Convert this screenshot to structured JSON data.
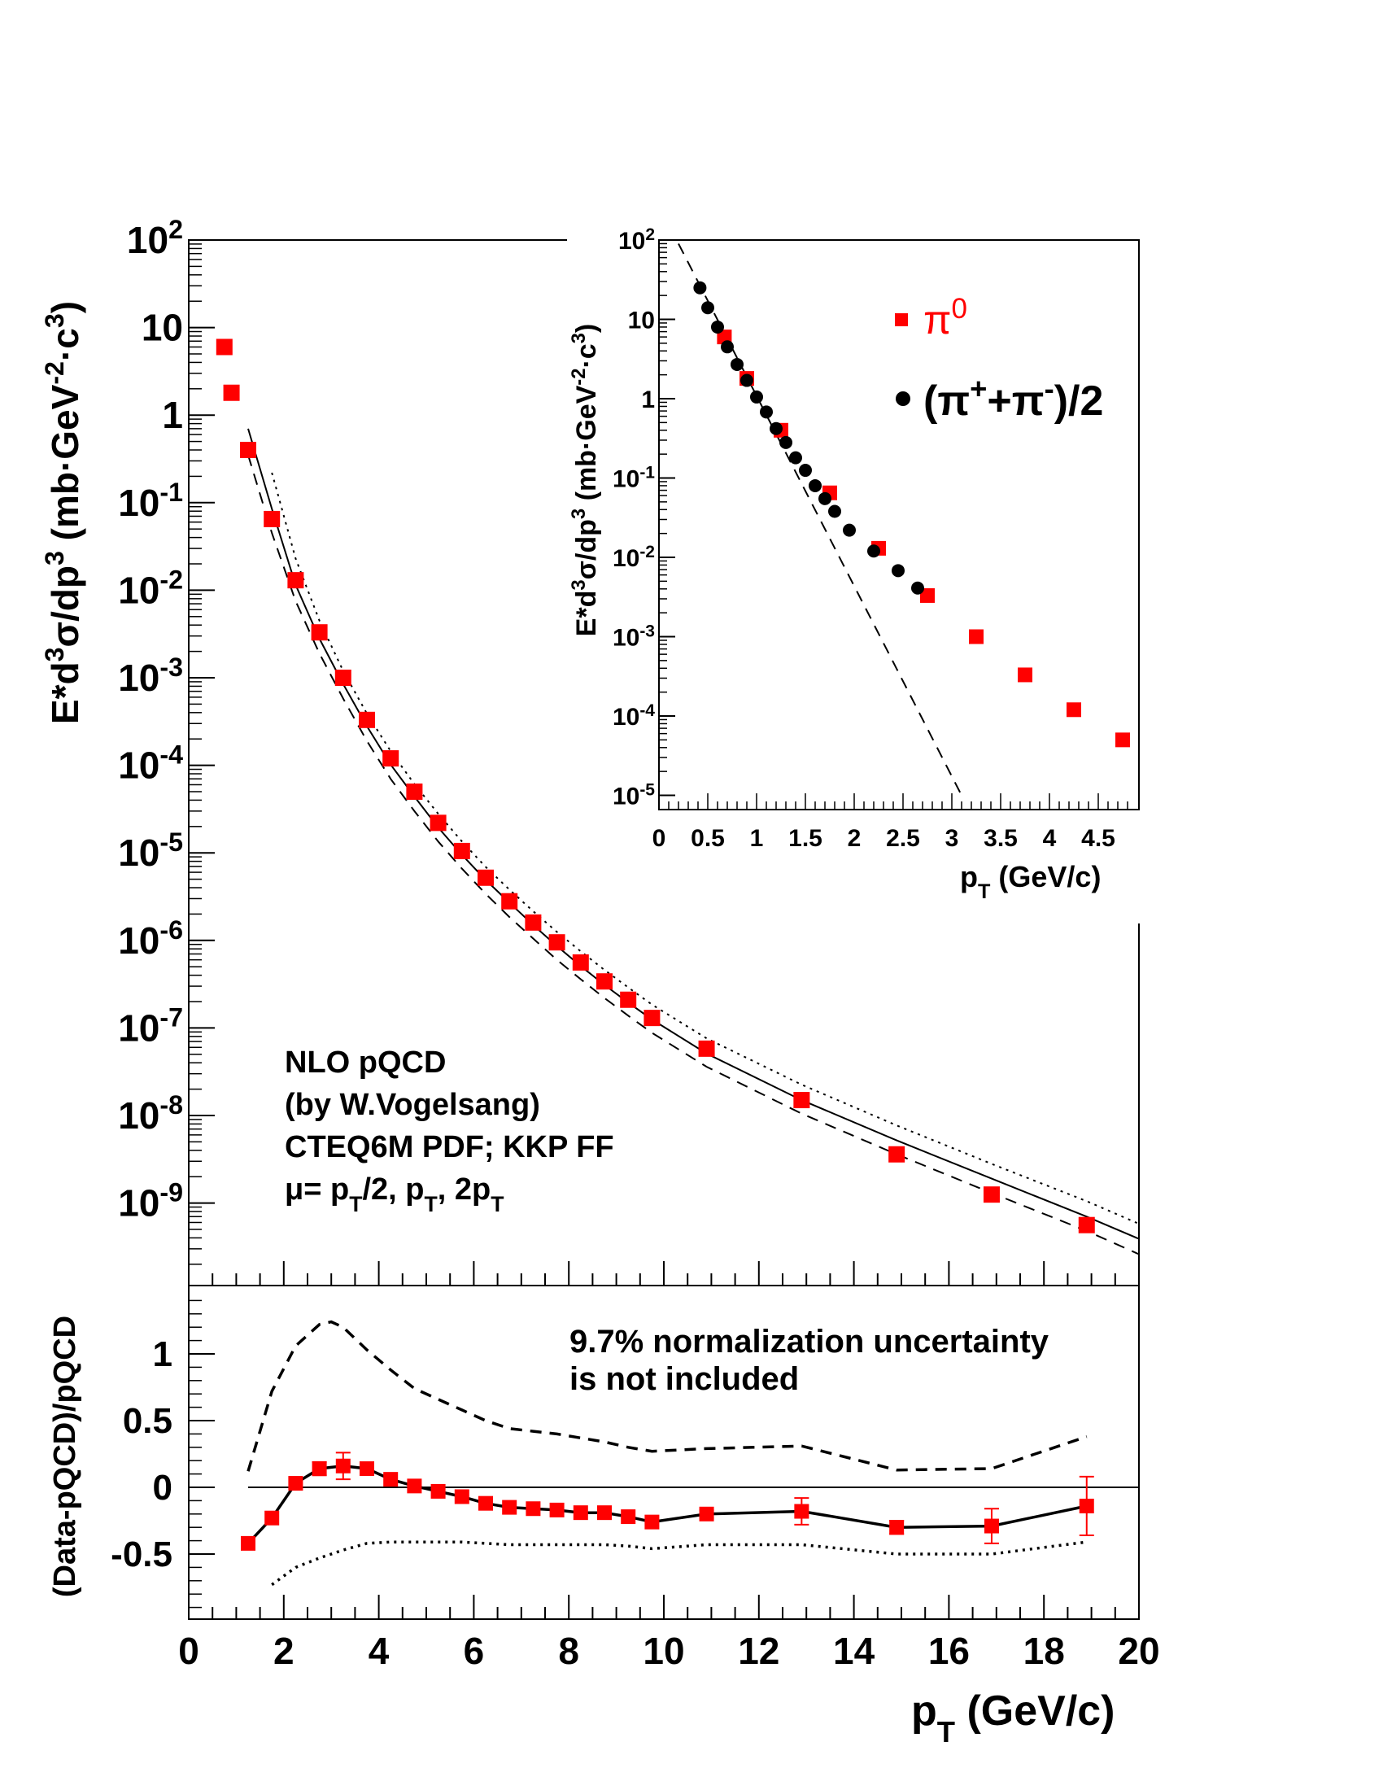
{
  "colors": {
    "pi0": "#ff0000",
    "charged": "#000000",
    "axis": "#000000",
    "background": "#ffffff"
  },
  "main": {
    "x_tick_labels": [
      "0",
      "2",
      "4",
      "6",
      "8",
      "10",
      "12",
      "14",
      "16",
      "18",
      "20"
    ],
    "y_tick_labels": [
      {
        "base": "10",
        "exp": "2",
        "e": 2
      },
      {
        "base": "10",
        "exp": "",
        "e": 1
      },
      {
        "base": "1",
        "exp": "",
        "e": 0
      },
      {
        "base": "10",
        "exp": "-1",
        "e": -1
      },
      {
        "base": "10",
        "exp": "-2",
        "e": -2
      },
      {
        "base": "10",
        "exp": "-3",
        "e": -3
      },
      {
        "base": "10",
        "exp": "-4",
        "e": -4
      },
      {
        "base": "10",
        "exp": "-5",
        "e": -5
      },
      {
        "base": "10",
        "exp": "-6",
        "e": -6
      },
      {
        "base": "10",
        "exp": "-7",
        "e": -7
      },
      {
        "base": "10",
        "exp": "-8",
        "e": -8
      },
      {
        "base": "10",
        "exp": "-9",
        "e": -9
      }
    ],
    "ylabel": "E*d³σ/dp³ (mb·GeV⁻²·c³)",
    "annotation_lines": [
      "NLO pQCD",
      "(by W.Vogelsang)",
      "CTEQ6M PDF; KKP FF",
      "μ= pT/2, pT, 2pT"
    ]
  },
  "ratio": {
    "y_tick_labels": [
      "1",
      "0.5",
      "0",
      "-0.5"
    ],
    "ylabel": "(Data-pQCD)/pQCD",
    "note_lines": [
      "9.7% normalization uncertainty",
      "is not included"
    ]
  },
  "xlabel": "pT (GeV/c)",
  "inset": {
    "x_tick_labels": [
      "0",
      "0.5",
      "1",
      "1.5",
      "2",
      "2.5",
      "3",
      "3.5",
      "4",
      "4.5"
    ],
    "y_tick_labels": [
      {
        "base": "10",
        "exp": "2",
        "e": 2
      },
      {
        "base": "10",
        "exp": "",
        "e": 1
      },
      {
        "base": "1",
        "exp": "",
        "e": 0
      },
      {
        "base": "10",
        "exp": "-1",
        "e": -1
      },
      {
        "base": "10",
        "exp": "-2",
        "e": -2
      },
      {
        "base": "10",
        "exp": "-3",
        "e": -3
      },
      {
        "base": "10",
        "exp": "-4",
        "e": -4
      },
      {
        "base": "10",
        "exp": "-5",
        "e": -5
      }
    ],
    "ylabel": "E*d³σ/dp³ (mb·GeV⁻²·c³)",
    "xlabel": "pT (GeV/c)",
    "legend": {
      "pi0_label": "π0",
      "charged_label": "(π⁺+π⁻)/2"
    }
  },
  "chart_data": [
    {
      "type": "scatter",
      "panel": "main",
      "xlabel": "pT (GeV/c)",
      "ylabel": "E*d³σ/dp³ (mb·GeV⁻²·c³)",
      "xlim": [
        0,
        20
      ],
      "ylim": [
        1e-10,
        100
      ],
      "log_y": true,
      "series": [
        {
          "name": "π0",
          "marker": "square",
          "color": "#ff0000",
          "x": [
            0.75,
            0.9,
            1.25,
            1.75,
            2.25,
            2.75,
            3.25,
            3.75,
            4.25,
            4.75,
            5.25,
            5.75,
            6.25,
            6.75,
            7.25,
            7.75,
            8.25,
            8.75,
            9.25,
            9.75,
            10.9,
            12.9,
            14.9,
            16.9,
            18.9
          ],
          "y": [
            6.0,
            1.8,
            0.4,
            0.065,
            0.013,
            0.0033,
            0.001,
            0.00033,
            0.00012,
            5e-05,
            2.2e-05,
            1.05e-05,
            5.2e-06,
            2.8e-06,
            1.6e-06,
            9.5e-07,
            5.6e-07,
            3.4e-07,
            2.1e-07,
            1.3e-07,
            5.8e-08,
            1.5e-08,
            3.6e-09,
            1.25e-09,
            5.6e-10
          ]
        },
        {
          "curve": "solid",
          "x": [
            1.25,
            1.75,
            2.25,
            2.75,
            3.25,
            3.75,
            4.25,
            4.75,
            5.25,
            5.75,
            6.25,
            6.75,
            7.25,
            7.75,
            8.25,
            8.75,
            9.25,
            9.75,
            10.9,
            12.9,
            14.9,
            16.9,
            18.9,
            20.0
          ],
          "y": [
            0.7,
            0.085,
            0.0115,
            0.0028,
            0.00085,
            0.00028,
            0.000102,
            4.4e-05,
            1.95e-05,
            9.5e-06,
            4.9e-06,
            2.7e-06,
            1.5e-06,
            8.6e-07,
            5.1e-07,
            3.1e-07,
            1.95e-07,
            1.25e-07,
            5.1e-08,
            1.5e-08,
            5.2e-09,
            1.9e-09,
            7e-10,
            3.9e-10
          ]
        },
        {
          "curve": "dashed",
          "x": [
            1.25,
            1.75,
            2.25,
            2.75,
            3.25,
            3.75,
            4.25,
            4.75,
            5.25,
            5.75,
            6.25,
            6.75,
            7.25,
            7.75,
            8.25,
            8.75,
            9.25,
            9.75,
            10.9,
            12.9,
            14.9,
            16.9,
            18.9,
            20.0
          ],
          "y": [
            0.35,
            0.045,
            0.0075,
            0.0019,
            0.00058,
            0.00019,
            7e-05,
            3e-05,
            1.35e-05,
            6.6e-06,
            3.4e-06,
            1.85e-06,
            1.05e-06,
            6e-07,
            3.6e-07,
            2.2e-07,
            1.38e-07,
            8.8e-08,
            3.6e-08,
            1.05e-08,
            3.6e-09,
            1.3e-09,
            4.8e-10,
            2.6e-10
          ]
        },
        {
          "curve": "dotted",
          "x": [
            1.75,
            2.25,
            2.75,
            3.25,
            3.75,
            4.25,
            4.75,
            5.25,
            5.75,
            6.25,
            6.75,
            7.25,
            7.75,
            8.25,
            8.75,
            9.25,
            9.75,
            10.9,
            12.9,
            14.9,
            16.9,
            18.9,
            20.0
          ],
          "y": [
            0.22,
            0.023,
            0.0045,
            0.0012,
            0.00039,
            0.000145,
            6.1e-05,
            2.8e-05,
            1.35e-05,
            6.9e-06,
            3.8e-06,
            2.15e-06,
            1.25e-06,
            7.5e-07,
            4.6e-07,
            2.9e-07,
            1.85e-07,
            7.6e-08,
            2.25e-08,
            7.7e-09,
            2.8e-09,
            1.05e-09,
            5.8e-10
          ]
        }
      ]
    },
    {
      "type": "line",
      "panel": "ratio",
      "ylabel": "(Data-pQCD)/pQCD",
      "xlabel": "pT (GeV/c)",
      "xlim": [
        0,
        20
      ],
      "ylim": [
        -0.95,
        1.45
      ],
      "series": [
        {
          "name": "π0",
          "marker": "square",
          "color": "#ff0000",
          "x": [
            1.25,
            1.75,
            2.25,
            2.75,
            3.25,
            3.75,
            4.25,
            4.75,
            5.25,
            5.75,
            6.25,
            6.75,
            7.25,
            7.75,
            8.25,
            8.75,
            9.25,
            9.75,
            10.9,
            12.9,
            14.9,
            16.9,
            18.9
          ],
          "y": [
            -0.42,
            -0.23,
            0.03,
            0.14,
            0.16,
            0.14,
            0.06,
            0.01,
            -0.03,
            -0.07,
            -0.12,
            -0.15,
            -0.16,
            -0.17,
            -0.19,
            -0.19,
            -0.22,
            -0.26,
            -0.2,
            -0.18,
            -0.3,
            -0.29,
            -0.14
          ],
          "err": [
            0,
            0,
            0,
            0.05,
            0.1,
            0.04,
            0,
            0,
            0,
            0,
            0,
            0,
            0,
            0,
            0,
            0,
            0,
            0,
            0.03,
            0.1,
            0.05,
            0.13,
            0.22
          ]
        },
        {
          "curve": "dashed",
          "x": [
            1.25,
            1.75,
            2.25,
            2.75,
            3.0,
            3.25,
            3.75,
            4.25,
            4.75,
            5.25,
            5.75,
            6.25,
            6.75,
            7.25,
            7.75,
            8.25,
            8.75,
            9.25,
            9.75,
            10.9,
            12.9,
            14.9,
            16.9,
            18.9
          ],
          "y": [
            0.12,
            0.72,
            1.06,
            1.22,
            1.24,
            1.2,
            1.03,
            0.88,
            0.74,
            0.66,
            0.58,
            0.5,
            0.44,
            0.42,
            0.4,
            0.37,
            0.34,
            0.3,
            0.27,
            0.29,
            0.31,
            0.13,
            0.14,
            0.38
          ]
        },
        {
          "curve": "dotted",
          "x": [
            1.75,
            2.25,
            2.75,
            3.25,
            3.75,
            4.25,
            4.75,
            5.25,
            5.75,
            6.25,
            6.75,
            7.25,
            7.75,
            8.25,
            8.75,
            9.25,
            9.75,
            10.9,
            12.9,
            14.9,
            16.9,
            18.9
          ],
          "y": [
            -0.73,
            -0.6,
            -0.53,
            -0.47,
            -0.42,
            -0.41,
            -0.41,
            -0.41,
            -0.41,
            -0.42,
            -0.43,
            -0.43,
            -0.43,
            -0.43,
            -0.43,
            -0.44,
            -0.46,
            -0.43,
            -0.43,
            -0.5,
            -0.5,
            -0.41
          ]
        },
        {
          "curve": "zero-line",
          "x": [
            1.25,
            20.0
          ],
          "y": [
            0,
            0
          ]
        }
      ]
    },
    {
      "type": "scatter",
      "panel": "inset",
      "xlabel": "pT (GeV/c)",
      "ylabel": "E*d³σ/dp³ (mb·GeV⁻²·c³)",
      "xlim": [
        0,
        5
      ],
      "ylim": [
        5e-06,
        100
      ],
      "log_y": true,
      "series": [
        {
          "name": "π0",
          "marker": "square",
          "color": "#ff0000",
          "x": [
            0.67,
            0.9,
            1.25,
            1.75,
            2.25,
            2.75,
            3.25,
            3.75,
            4.25,
            4.75
          ],
          "y": [
            6.0,
            1.8,
            0.4,
            0.065,
            0.013,
            0.0033,
            0.001,
            0.00033,
            0.00012,
            5e-05
          ]
        },
        {
          "name": "(π⁺+π⁻)/2",
          "marker": "circle",
          "color": "#000000",
          "x": [
            0.42,
            0.5,
            0.6,
            0.7,
            0.8,
            0.9,
            1.0,
            1.1,
            1.2,
            1.3,
            1.4,
            1.5,
            1.6,
            1.7,
            1.8,
            1.95,
            2.2,
            2.45,
            2.65
          ],
          "y": [
            25,
            14,
            8.0,
            4.5,
            2.7,
            1.7,
            1.05,
            0.68,
            0.42,
            0.28,
            0.18,
            0.125,
            0.08,
            0.055,
            0.038,
            0.022,
            0.012,
            0.0068,
            0.0041
          ]
        },
        {
          "curve": "dashed",
          "x": [
            0.2,
            3.1
          ],
          "y": [
            90,
            1e-05
          ]
        }
      ]
    }
  ]
}
